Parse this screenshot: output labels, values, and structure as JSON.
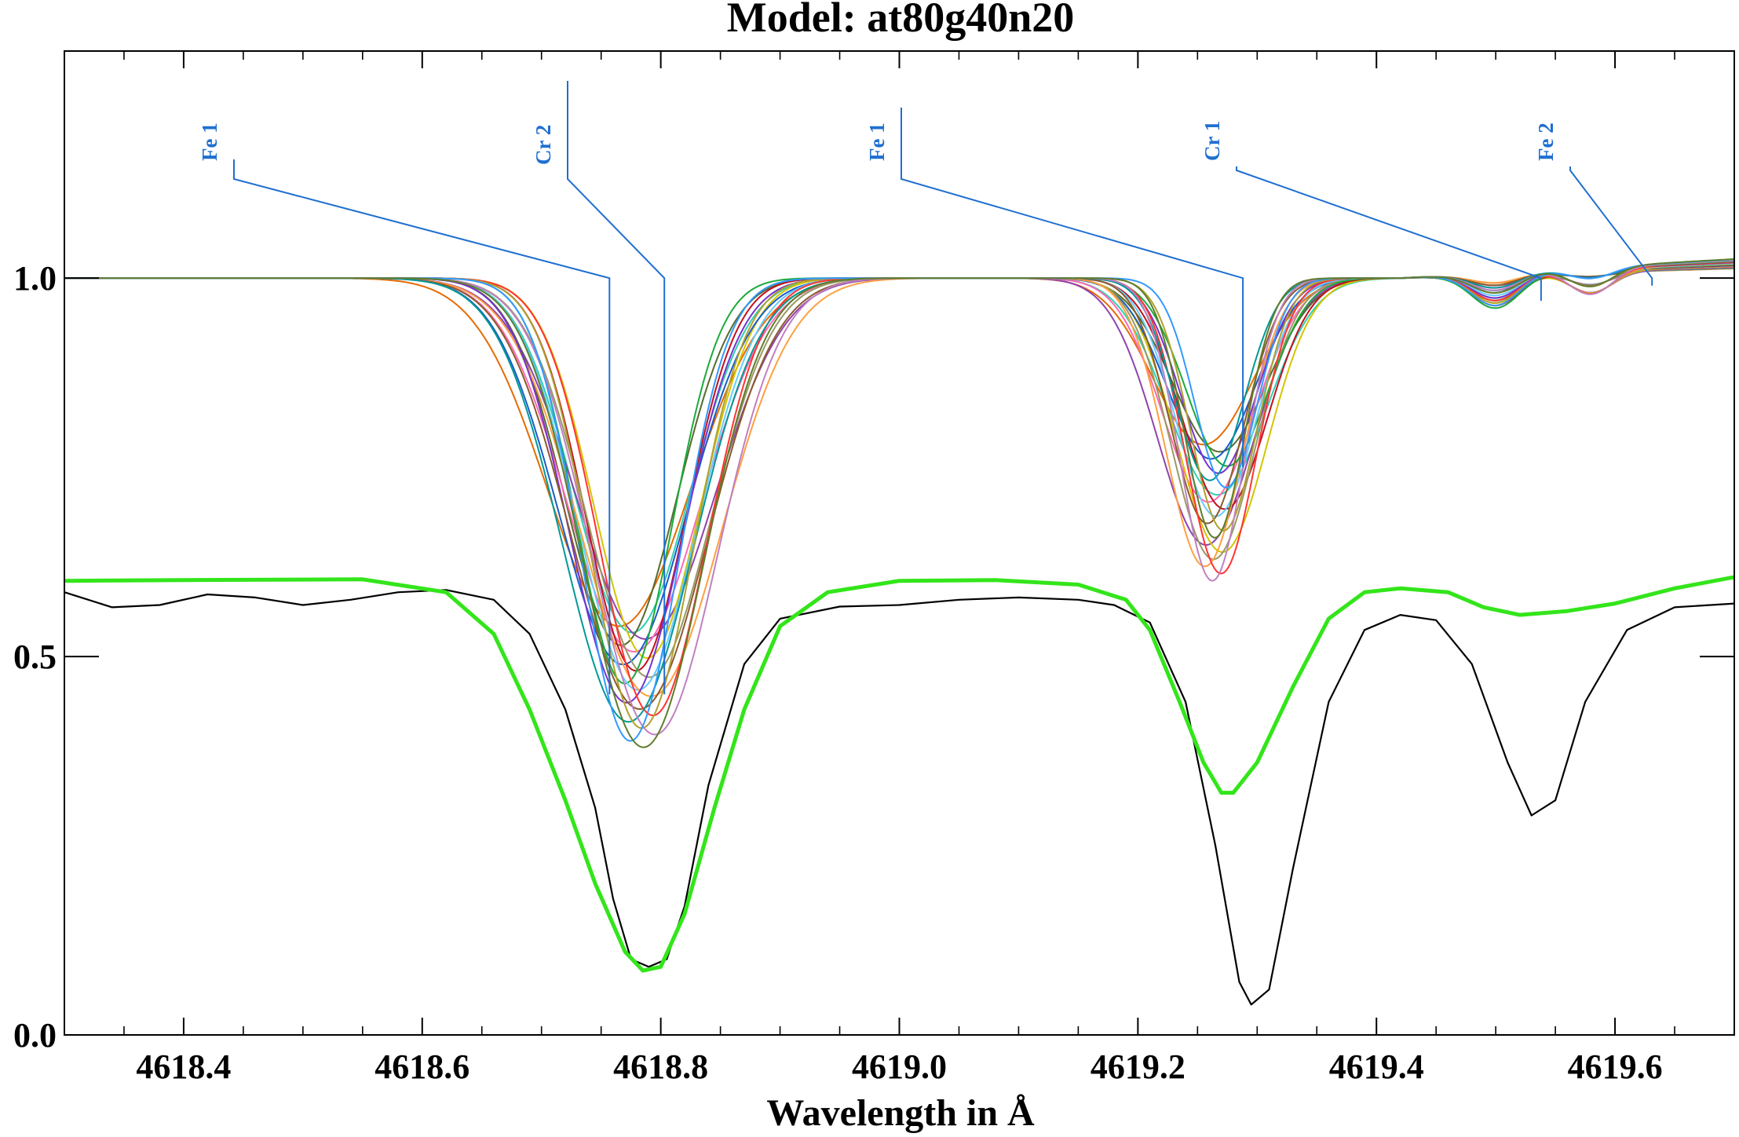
{
  "chart_data": {
    "type": "line",
    "title": "Model: at80g40n20",
    "xlabel": "Wavelength in Å",
    "ylabel": "",
    "xlim": [
      4618.3,
      4619.7
    ],
    "ylim": [
      0.0,
      1.3
    ],
    "xticks": [
      {
        "value": 4618.4,
        "label": "4618.4"
      },
      {
        "value": 4618.6,
        "label": "4618.6"
      },
      {
        "value": 4618.8,
        "label": "4618.8"
      },
      {
        "value": 4619.0,
        "label": "4619.0"
      },
      {
        "value": 4619.2,
        "label": "4619.2"
      },
      {
        "value": 4619.4,
        "label": "4619.4"
      },
      {
        "value": 4619.6,
        "label": "4619.6"
      }
    ],
    "xminor_step": 0.05,
    "yticks": [
      {
        "value": 0.0,
        "label": "0.0"
      },
      {
        "value": 0.5,
        "label": "0.5"
      },
      {
        "value": 1.0,
        "label": "1.0"
      }
    ],
    "grid": false,
    "line_ids": [
      {
        "label": "Fe 1",
        "wavelength": 4618.757,
        "depth": 0.45,
        "color": "#1f6fd1"
      },
      {
        "label": "Cr 2",
        "wavelength": 4618.803,
        "depth": 0.45,
        "color": "#1f6fd1"
      },
      {
        "label": "Fe 1",
        "wavelength": 4619.288,
        "depth": 0.75,
        "color": "#1f6fd1"
      },
      {
        "label": "Cr 1",
        "wavelength": 4619.538,
        "depth": 0.97,
        "color": "#1f6fd1"
      },
      {
        "label": "Fe 2",
        "wavelength": 4619.631,
        "depth": 0.99,
        "color": "#1f6fd1"
      }
    ],
    "observed": {
      "color": "#000000",
      "points": [
        [
          4618.3,
          0.585
        ],
        [
          4618.34,
          0.565
        ],
        [
          4618.38,
          0.568
        ],
        [
          4618.42,
          0.582
        ],
        [
          4618.46,
          0.578
        ],
        [
          4618.5,
          0.568
        ],
        [
          4618.54,
          0.575
        ],
        [
          4618.58,
          0.585
        ],
        [
          4618.62,
          0.588
        ],
        [
          4618.66,
          0.575
        ],
        [
          4618.69,
          0.53
        ],
        [
          4618.72,
          0.43
        ],
        [
          4618.745,
          0.3
        ],
        [
          4618.76,
          0.18
        ],
        [
          4618.775,
          0.1
        ],
        [
          4618.79,
          0.09
        ],
        [
          4618.805,
          0.1
        ],
        [
          4618.82,
          0.17
        ],
        [
          4618.84,
          0.33
        ],
        [
          4618.87,
          0.49
        ],
        [
          4618.9,
          0.55
        ],
        [
          4618.95,
          0.566
        ],
        [
          4619.0,
          0.568
        ],
        [
          4619.05,
          0.575
        ],
        [
          4619.1,
          0.578
        ],
        [
          4619.15,
          0.575
        ],
        [
          4619.18,
          0.568
        ],
        [
          4619.21,
          0.545
        ],
        [
          4619.24,
          0.44
        ],
        [
          4619.265,
          0.25
        ],
        [
          4619.285,
          0.07
        ],
        [
          4619.295,
          0.04
        ],
        [
          4619.31,
          0.06
        ],
        [
          4619.33,
          0.22
        ],
        [
          4619.36,
          0.44
        ],
        [
          4619.39,
          0.535
        ],
        [
          4619.42,
          0.555
        ],
        [
          4619.45,
          0.548
        ],
        [
          4619.48,
          0.49
        ],
        [
          4619.51,
          0.36
        ],
        [
          4619.53,
          0.29
        ],
        [
          4619.55,
          0.31
        ],
        [
          4619.575,
          0.44
        ],
        [
          4619.61,
          0.535
        ],
        [
          4619.65,
          0.565
        ],
        [
          4619.7,
          0.57
        ]
      ]
    },
    "model_fit": {
      "color": "#33e51a",
      "points": [
        [
          4618.3,
          0.6
        ],
        [
          4618.4,
          0.601
        ],
        [
          4618.55,
          0.602
        ],
        [
          4618.62,
          0.585
        ],
        [
          4618.66,
          0.53
        ],
        [
          4618.69,
          0.43
        ],
        [
          4618.72,
          0.31
        ],
        [
          4618.745,
          0.2
        ],
        [
          4618.77,
          0.11
        ],
        [
          4618.785,
          0.085
        ],
        [
          4618.8,
          0.09
        ],
        [
          4618.82,
          0.16
        ],
        [
          4618.845,
          0.3
        ],
        [
          4618.87,
          0.43
        ],
        [
          4618.9,
          0.54
        ],
        [
          4618.94,
          0.585
        ],
        [
          4619.0,
          0.6
        ],
        [
          4619.08,
          0.601
        ],
        [
          4619.15,
          0.595
        ],
        [
          4619.19,
          0.575
        ],
        [
          4619.21,
          0.535
        ],
        [
          4619.235,
          0.44
        ],
        [
          4619.255,
          0.36
        ],
        [
          4619.27,
          0.32
        ],
        [
          4619.28,
          0.32
        ],
        [
          4619.3,
          0.36
        ],
        [
          4619.33,
          0.46
        ],
        [
          4619.36,
          0.55
        ],
        [
          4619.39,
          0.585
        ],
        [
          4619.42,
          0.59
        ],
        [
          4619.46,
          0.585
        ],
        [
          4619.49,
          0.565
        ],
        [
          4619.52,
          0.555
        ],
        [
          4619.56,
          0.56
        ],
        [
          4619.6,
          0.57
        ],
        [
          4619.65,
          0.59
        ],
        [
          4619.7,
          0.605
        ]
      ]
    },
    "synthetic_family": {
      "colors": [
        "#e66b00",
        "#2fd0b2",
        "#8e44ad",
        "#556b2f",
        "#ff69b4",
        "#d4c400",
        "#1a5cc8",
        "#c01020",
        "#999966",
        "#1aaa3a",
        "#66ccff",
        "#ff9f40",
        "#7733cc",
        "#8b5a2b",
        "#ff3333",
        "#009999",
        "#b0a030",
        "#c080c0",
        "#3399ff",
        "#607d2b"
      ],
      "line1": {
        "center_base": 4618.78,
        "center_spread": 0.03,
        "depth_min": 0.46,
        "depth_max": 0.62,
        "sigma_min": 0.04,
        "sigma_max": 0.06
      },
      "line2": {
        "center_base": 4619.265,
        "center_spread": 0.02,
        "depth_min": 0.22,
        "depth_max": 0.4,
        "sigma_min": 0.025,
        "sigma_max": 0.042
      },
      "line3": {
        "center": 4619.5,
        "depth_min": 0.01,
        "depth_max": 0.045,
        "sigma": 0.02
      },
      "line4": {
        "center": 4619.58,
        "depth_min": 0.005,
        "depth_max": 0.035,
        "sigma": 0.018
      },
      "slope": 0.09,
      "slope_start": 4619.42
    }
  }
}
